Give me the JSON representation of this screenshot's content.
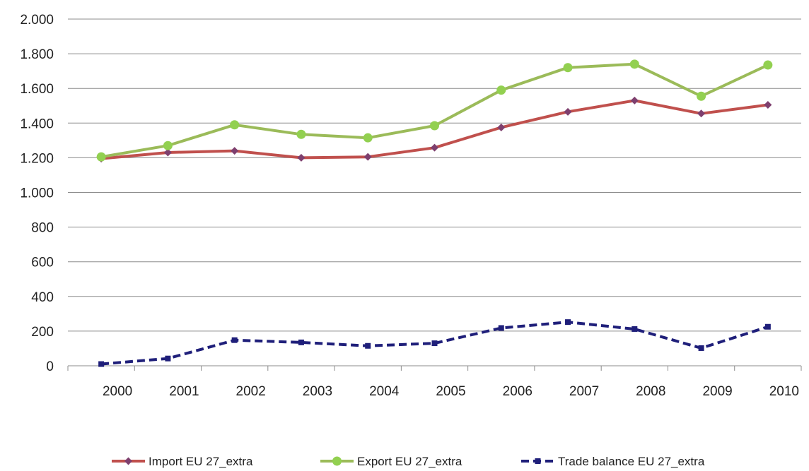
{
  "chart_data": {
    "type": "line",
    "categories": [
      "2000",
      "2001",
      "2002",
      "2003",
      "2004",
      "2005",
      "2006",
      "2007",
      "2008",
      "2009",
      "2010"
    ],
    "ylim": [
      0,
      2000
    ],
    "y_ticks": [
      0,
      200,
      400,
      600,
      800,
      1000,
      1200,
      1400,
      1600,
      1800,
      2000
    ],
    "y_tick_labels": [
      "0",
      "200",
      "400",
      "600",
      "800",
      "1.000",
      "1.200",
      "1.400",
      "1.600",
      "1.800",
      "2.000"
    ],
    "grid": true,
    "legend_position": "bottom",
    "series": [
      {
        "name": "Import EU 27_extra",
        "color": "#c0504d",
        "marker_color": "#7e3f6e",
        "marker": "diamond",
        "style": "solid",
        "values": [
          1195,
          1230,
          1240,
          1200,
          1205,
          1258,
          1375,
          1465,
          1530,
          1455,
          1505
        ]
      },
      {
        "name": "Export EU 27_extra",
        "color": "#9bbb59",
        "marker_color": "#92d050",
        "marker": "circle",
        "style": "solid",
        "values": [
          1205,
          1270,
          1390,
          1335,
          1315,
          1385,
          1590,
          1720,
          1740,
          1555,
          1735
        ]
      },
      {
        "name": "Trade balance EU 27_extra",
        "color": "#1f1f7a",
        "marker_color": "#1f1f7a",
        "marker": "square",
        "style": "dashed",
        "values": [
          10,
          42,
          148,
          135,
          115,
          130,
          218,
          252,
          212,
          102,
          225
        ]
      }
    ]
  }
}
